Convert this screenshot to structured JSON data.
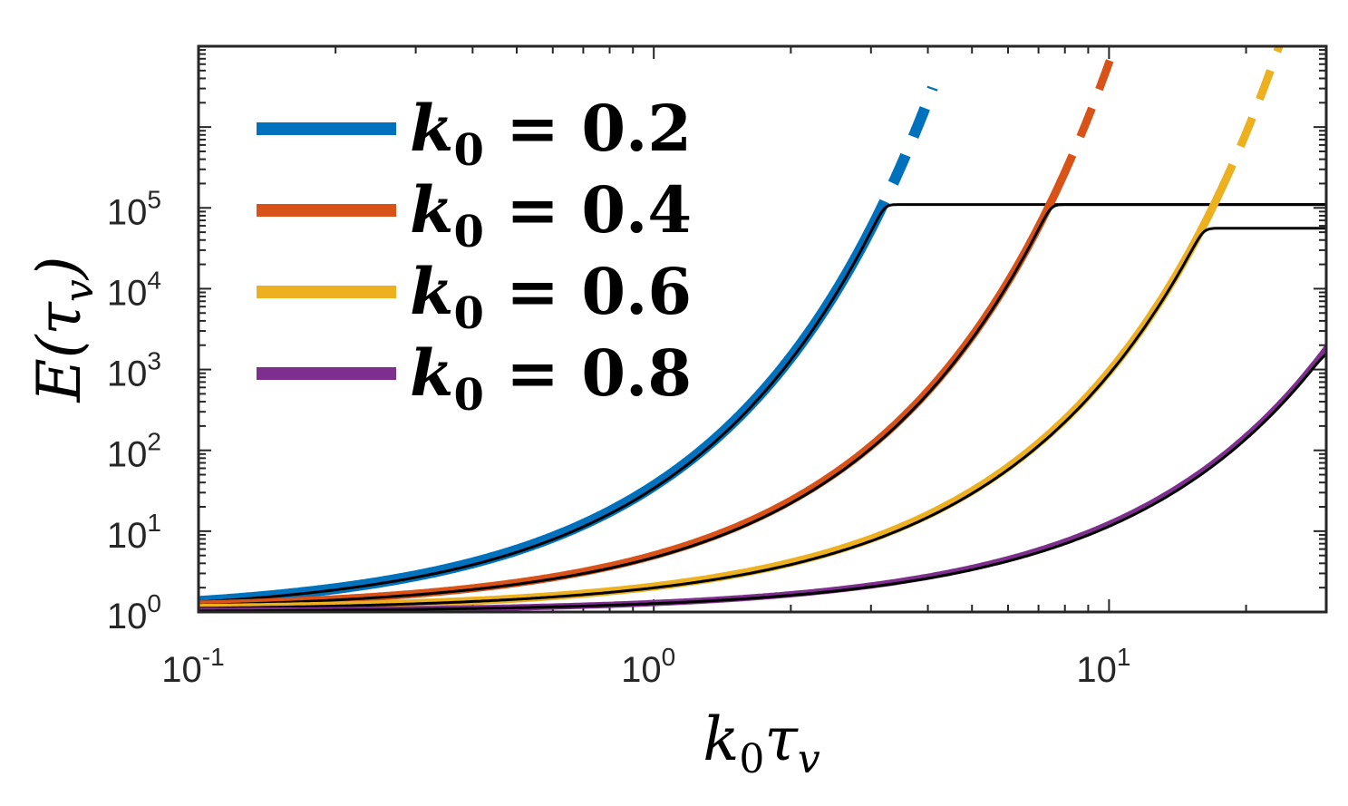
{
  "chart_data": {
    "type": "line",
    "xscale": "log",
    "yscale": "log",
    "xlim": [
      0.1,
      30
    ],
    "ylim": [
      1,
      10000000
    ],
    "xlabel": "k0 τv",
    "ylabel": "E(τv)",
    "x_ticks": [
      {
        "value": 0.1,
        "base": "10",
        "exp": "-1"
      },
      {
        "value": 1,
        "base": "10",
        "exp": "0"
      },
      {
        "value": 10,
        "base": "10",
        "exp": "1"
      }
    ],
    "y_ticks": [
      {
        "value": 1,
        "base": "10",
        "exp": "0"
      },
      {
        "value": 10,
        "base": "10",
        "exp": "1"
      },
      {
        "value": 100,
        "base": "10",
        "exp": "2"
      },
      {
        "value": 1000,
        "base": "10",
        "exp": "3"
      },
      {
        "value": 10000,
        "base": "10",
        "exp": "4"
      },
      {
        "value": 100000,
        "base": "10",
        "exp": "5"
      }
    ],
    "legend_position": "top-left",
    "series": [
      {
        "name": "k0 = 0.2",
        "label_var": "k",
        "label_sub": "0",
        "label_rest": " = 0.2",
        "color": "#0072BD",
        "growth_rate": 3.66,
        "solid_until": 3.0,
        "dashed_until": 4.1,
        "reference": {
          "value_at_0_1": 1.35,
          "saturation": 110000,
          "saturates_at": 3.4
        }
      },
      {
        "name": "k0 = 0.4",
        "label_var": "k",
        "label_sub": "0",
        "label_rest": " = 0.4",
        "color": "#D95319",
        "growth_rate": 1.56,
        "solid_until": 7.8,
        "dashed_until": 10.9,
        "reference": {
          "value_at_0_1": 1.23,
          "saturation": 110000,
          "saturates_at": 8.6
        }
      },
      {
        "name": "k0 = 0.6",
        "label_var": "k",
        "label_sub": "0",
        "label_rest": " = 0.6",
        "color": "#EDB120",
        "growth_rate": 0.68,
        "solid_until": 17.5,
        "dashed_until": 24.5,
        "reference": {
          "value_at_0_1": 1.12,
          "saturation": 56000,
          "saturates_at": 19.5
        }
      },
      {
        "name": "k0 = 0.8",
        "label_var": "k",
        "label_sub": "0",
        "label_rest": " = 0.8",
        "color": "#7E2F8E",
        "growth_rate": 0.25,
        "solid_until": 30,
        "dashed_until": 30,
        "reference": {
          "value_at_0_1": 1.03,
          "saturation": 1800,
          "saturates_at": 30
        }
      }
    ]
  }
}
